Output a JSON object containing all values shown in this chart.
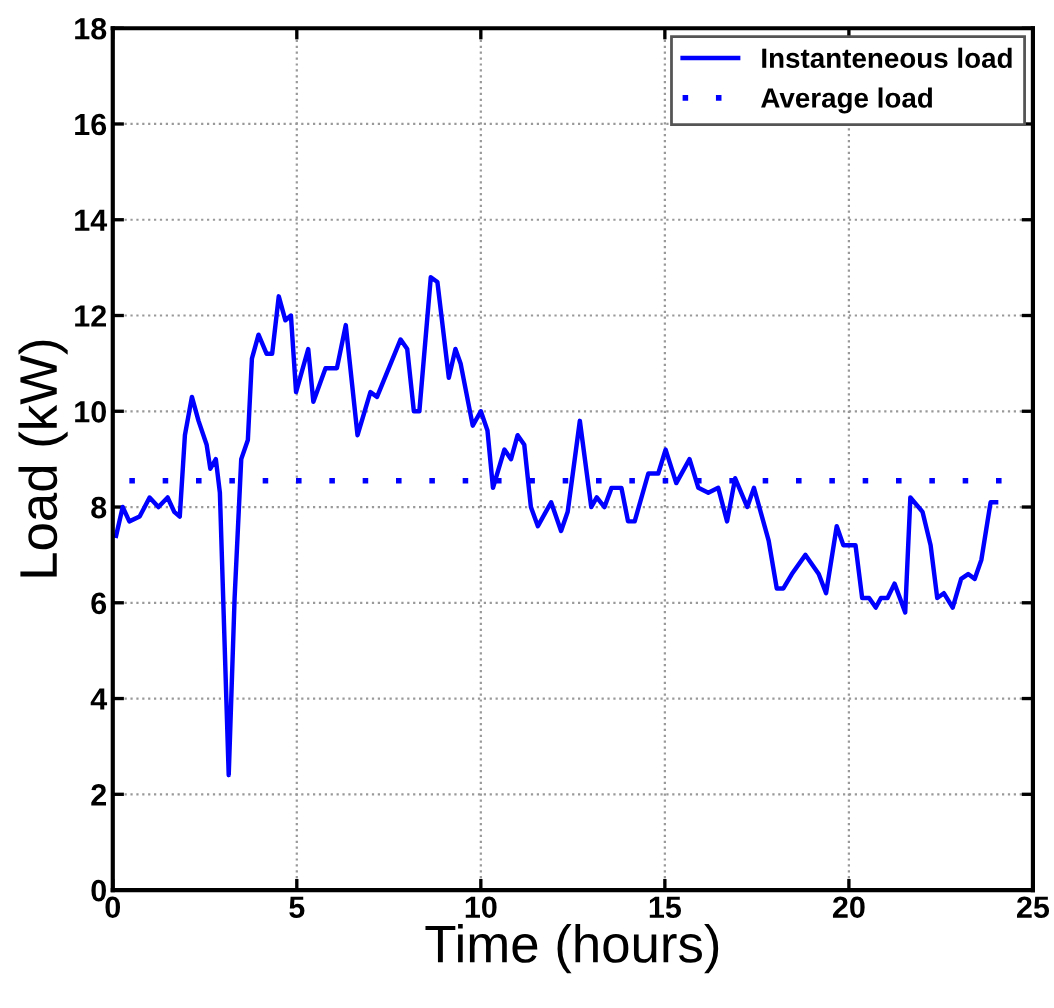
{
  "chart_data": {
    "type": "line",
    "xlabel": "Time (hours)",
    "ylabel": "Load (kW)",
    "xlim": [
      0,
      25
    ],
    "xticks": [
      0,
      5,
      10,
      15,
      20,
      25
    ],
    "ylim": [
      0,
      18
    ],
    "yticks": [
      0,
      2,
      4,
      6,
      8,
      10,
      12,
      14,
      16,
      18
    ],
    "grid": true,
    "legend": "top right",
    "series": [
      {
        "name": "Instanteneous load",
        "color": "#0000ff",
        "line_style": "solid",
        "x": [
          0.09,
          0.27,
          0.45,
          0.73,
          1.0,
          1.24,
          1.49,
          1.67,
          1.82,
          1.96,
          2.15,
          2.33,
          2.55,
          2.65,
          2.8,
          2.91,
          3.15,
          3.31,
          3.49,
          3.67,
          3.78,
          3.96,
          4.18,
          4.33,
          4.51,
          4.69,
          4.84,
          4.98,
          5.31,
          5.45,
          5.78,
          6.09,
          6.33,
          6.65,
          7.0,
          7.18,
          7.82,
          8.0,
          8.18,
          8.33,
          8.64,
          8.82,
          9.13,
          9.31,
          9.45,
          9.78,
          10.0,
          10.18,
          10.33,
          10.64,
          10.82,
          11.0,
          11.18,
          11.36,
          11.55,
          11.91,
          12.18,
          12.36,
          12.69,
          13.0,
          13.15,
          13.36,
          13.55,
          13.82,
          14.0,
          14.18,
          14.55,
          14.82,
          15.02,
          15.31,
          15.67,
          15.91,
          16.18,
          16.45,
          16.69,
          16.91,
          17.24,
          17.42,
          17.82,
          18.04,
          18.22,
          18.45,
          18.82,
          19.18,
          19.38,
          19.67,
          19.85,
          20.18,
          20.36,
          20.55,
          20.73,
          20.87,
          21.05,
          21.24,
          21.53,
          21.67,
          22.0,
          22.22,
          22.4,
          22.58,
          22.82,
          23.05,
          23.24,
          23.42,
          23.6,
          23.85,
          24.0
        ],
        "values": [
          7.4,
          8.0,
          7.7,
          7.8,
          8.2,
          8.0,
          8.2,
          7.9,
          7.8,
          9.5,
          10.3,
          9.8,
          9.3,
          8.8,
          9.0,
          8.3,
          2.4,
          6.1,
          9.0,
          9.4,
          11.1,
          11.6,
          11.2,
          11.2,
          12.4,
          11.9,
          12.0,
          10.4,
          11.3,
          10.2,
          10.9,
          10.9,
          11.8,
          9.5,
          10.4,
          10.3,
          11.5,
          11.3,
          10.0,
          10.0,
          12.8,
          12.7,
          10.7,
          11.3,
          11.0,
          9.7,
          10.0,
          9.6,
          8.4,
          9.2,
          9.0,
          9.5,
          9.3,
          8.0,
          7.6,
          8.1,
          7.5,
          7.9,
          9.8,
          8.0,
          8.2,
          8.0,
          8.4,
          8.4,
          7.7,
          7.7,
          8.7,
          8.7,
          9.2,
          8.5,
          9.0,
          8.4,
          8.3,
          8.4,
          7.7,
          8.6,
          8.0,
          8.4,
          7.3,
          6.3,
          6.3,
          6.6,
          7.0,
          6.6,
          6.2,
          7.6,
          7.2,
          7.2,
          6.1,
          6.1,
          5.9,
          6.1,
          6.1,
          6.4,
          5.8,
          8.2,
          7.9,
          7.2,
          6.1,
          6.2,
          5.9,
          6.5,
          6.6,
          6.5,
          6.9,
          8.1,
          8.1
        ]
      },
      {
        "name": "Average load",
        "color": "#0000ff",
        "line_style": "dotted",
        "x": [
          0.45,
          24.2
        ],
        "values": [
          8.55,
          8.55
        ]
      }
    ]
  }
}
